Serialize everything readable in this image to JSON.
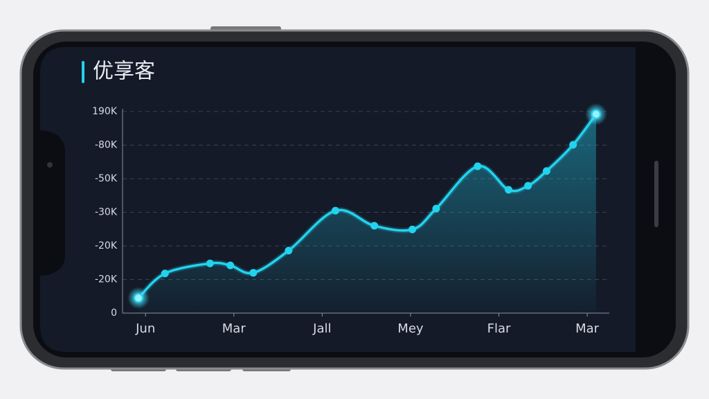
{
  "chart_data": {
    "type": "line",
    "title": "优享客",
    "x": [
      -0.08,
      0.22,
      0.73,
      0.96,
      1.22,
      1.62,
      2.15,
      2.59,
      3.02,
      3.29,
      3.76,
      4.11,
      4.33,
      4.54,
      4.84,
      5.1
    ],
    "values": [
      0.45,
      1.18,
      1.48,
      1.42,
      1.2,
      1.86,
      3.05,
      2.6,
      2.49,
      3.11,
      4.37,
      3.67,
      3.79,
      4.23,
      5.01,
      5.92
    ],
    "color": "#22d3ee",
    "xlim": [
      -0.26,
      5.25
    ],
    "xticks": [
      {
        "value": 0,
        "label": "Jun"
      },
      {
        "value": 1,
        "label": "Mar"
      },
      {
        "value": 2,
        "label": "Jall"
      },
      {
        "value": 3,
        "label": "Mey"
      },
      {
        "value": 4,
        "label": "Flar"
      },
      {
        "value": 5,
        "label": "Mar"
      }
    ],
    "ylim": [
      0,
      6
    ],
    "yticks": [
      0,
      {
        "value": 1,
        "label": "-20K"
      },
      {
        "value": 2,
        "label": "-20K"
      },
      {
        "value": 3,
        "label": "-30K"
      },
      {
        "value": 4,
        "label": "-50K"
      },
      {
        "value": 5,
        "label": "-80K"
      },
      {
        "value": 6,
        "label": "190K"
      }
    ],
    "grid": true
  }
}
